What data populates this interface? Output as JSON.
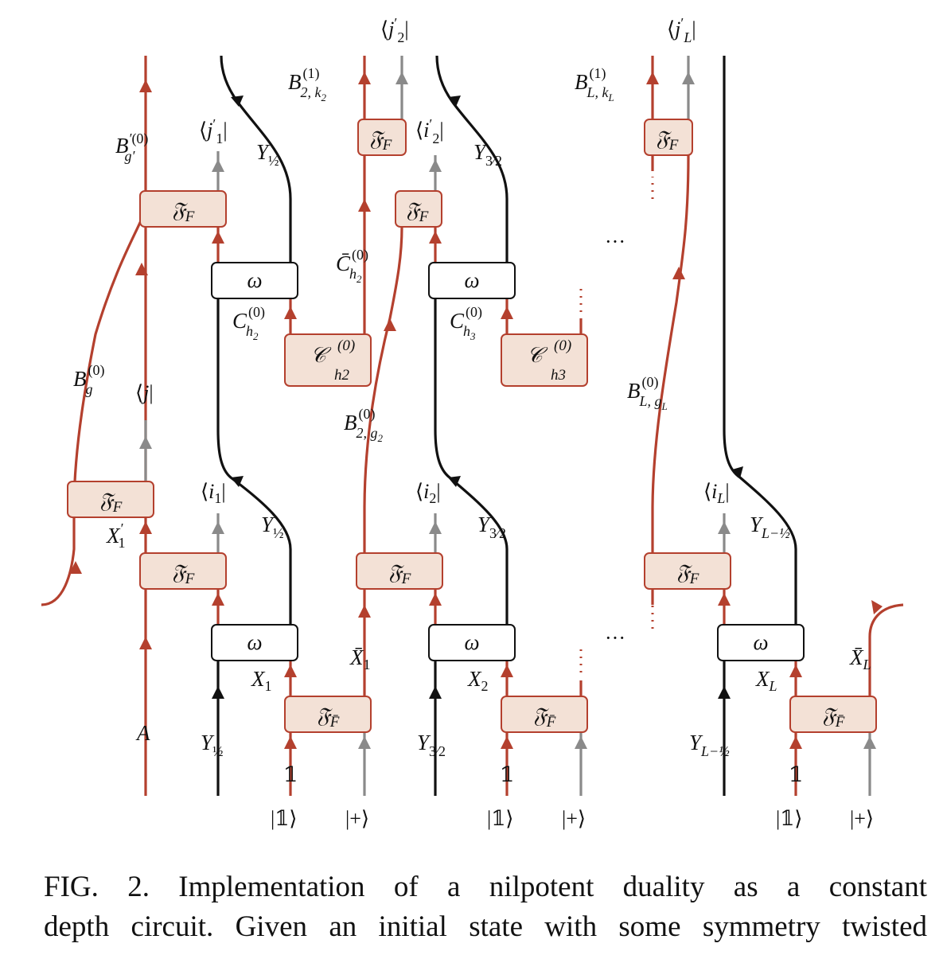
{
  "colors": {
    "red": "#b4402e",
    "gray": "#8a8a8a",
    "black": "#111111",
    "box_fill": "#f3e1d6"
  },
  "icons": [
    "arrow-up-icon"
  ],
  "caption": {
    "line1": "FIG. 2.  Implementation of a nilpotent duality as a constant",
    "line2": "depth circuit. Given an initial state with some symmetry twisted"
  },
  "labels": {
    "frak_f": "𝔉",
    "sub_f": "F",
    "sub_fbar": "F̄",
    "omega": "ω",
    "calC": "𝒞",
    "A": "A",
    "one": "𝟙",
    "ket_one": "|𝟙⟩",
    "ket_plus": "|+⟩",
    "dots": "···",
    "bra_j": "⟨j|",
    "bra_j1p": "⟨j′₁|",
    "bra_j2p": "⟨j′₂|",
    "bra_jLp": "⟨j′L|",
    "bra_i1": "⟨i₁|",
    "bra_i2": "⟨i₂|",
    "bra_i2p": "⟨i′₂|",
    "bra_iL": "⟨iL|",
    "X1": "X₁",
    "X1p": "X′₁",
    "X2": "X₂",
    "XL": "XL",
    "X1bar": "X̄₁",
    "XLbar": "X̄L",
    "Y_half": "Y½",
    "Y_3half": "Y3⁄2",
    "Y_L_half": "YL−½",
    "B_g0": "B(0)g",
    "B_gp0": "B′(0)g′",
    "B_2k2": "B(1)2,k2",
    "B_2g2": "B(0)2,g2",
    "B_LkL": "B(1)L,kL",
    "B_LgL": "B(0)L,gL",
    "C_h2": "C(0)h2",
    "Cbar_h2": "C̄(0)h2",
    "C_h3": "C(0)h3"
  }
}
